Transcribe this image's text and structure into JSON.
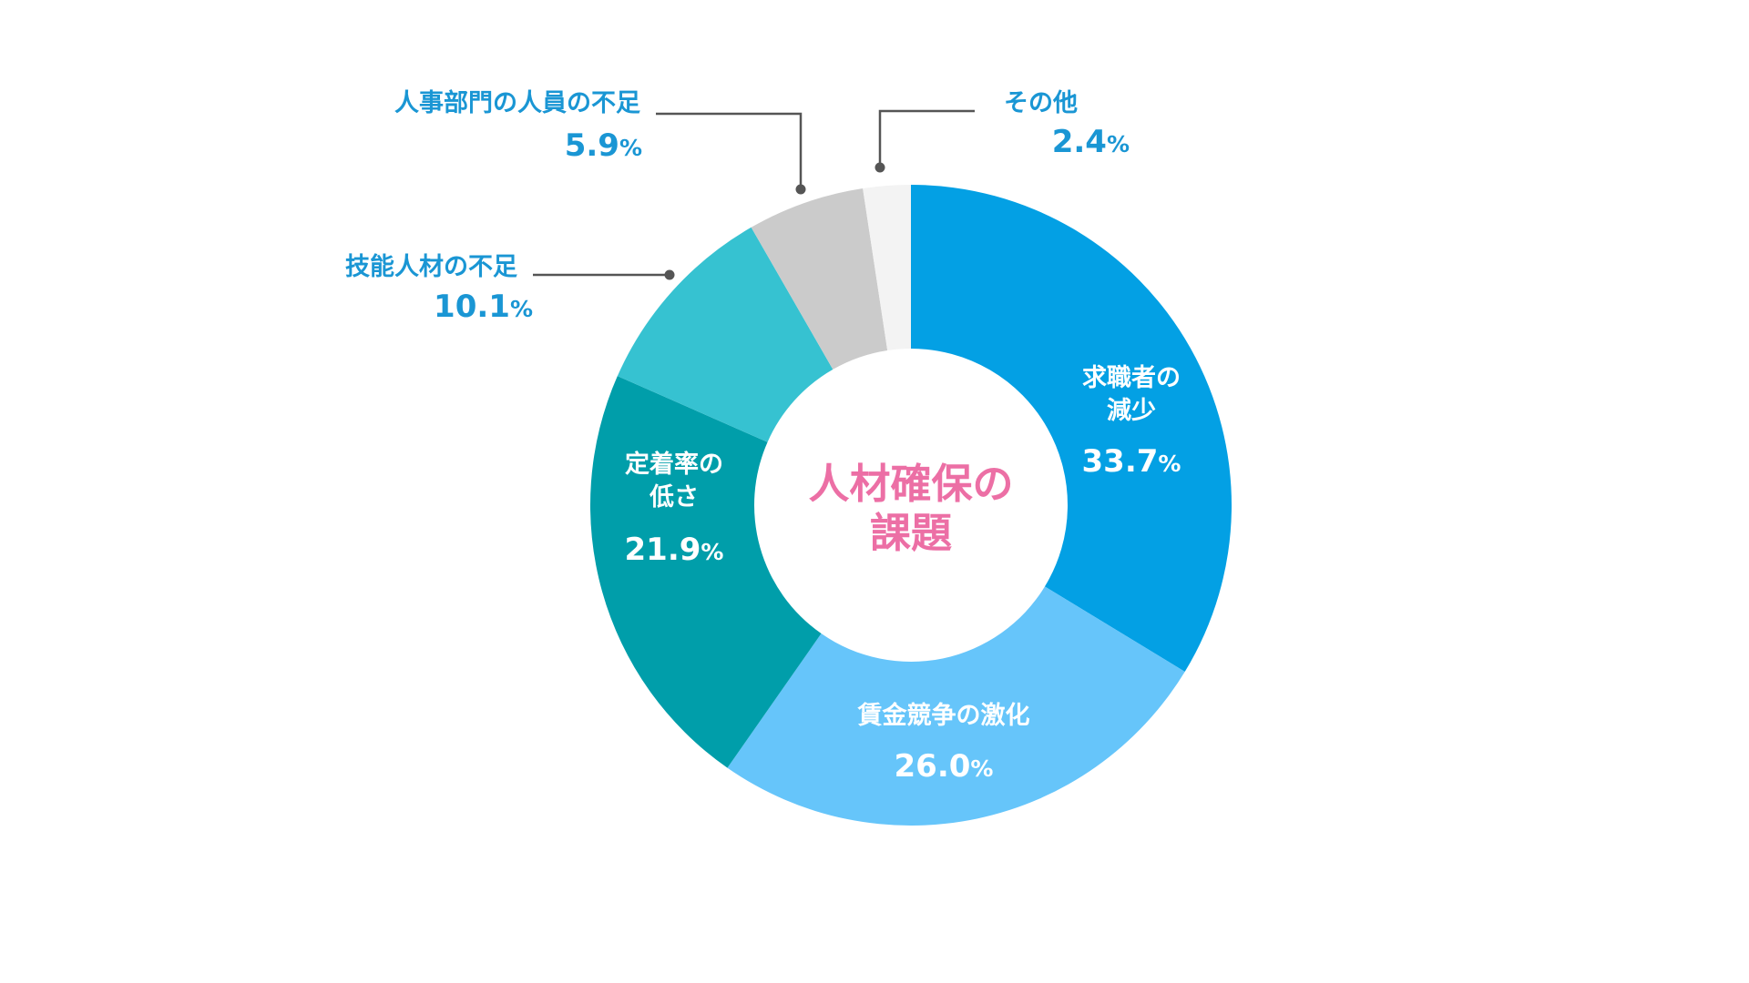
{
  "colors": {
    "inside_label": "#ffffff",
    "outside_label": "#1a96d4",
    "leader_line": "#555555",
    "center_text": "#ec6fa5"
  },
  "chart_data": {
    "type": "pie",
    "variant": "donut",
    "center_title": [
      "人材確保の",
      "課題"
    ],
    "percent_sign": "%",
    "start": "12 o'clock, clockwise",
    "slices": [
      {
        "label": [
          "求職者の",
          "減少"
        ],
        "value": 33.7,
        "value_text": "33.7",
        "color": "#03a0e4",
        "label_position": "inside"
      },
      {
        "label": [
          "賃金競争の激化"
        ],
        "value": 26.0,
        "value_text": "26.0",
        "color": "#66c5fa",
        "label_position": "inside"
      },
      {
        "label": [
          "定着率の",
          "低さ"
        ],
        "value": 21.9,
        "value_text": "21.9",
        "color": "#009eaa",
        "label_position": "inside"
      },
      {
        "label": [
          "技能人材の不足"
        ],
        "value": 10.1,
        "value_text": "10.1",
        "color": "#36c2d1",
        "label_position": "outside"
      },
      {
        "label": [
          "人事部門の人員の不足"
        ],
        "value": 5.9,
        "value_text": "5.9",
        "color": "#cbcbcb",
        "label_position": "outside"
      },
      {
        "label": [
          "その他"
        ],
        "value": 2.4,
        "value_text": "2.4",
        "color": "#f3f3f3",
        "label_position": "outside"
      }
    ]
  }
}
